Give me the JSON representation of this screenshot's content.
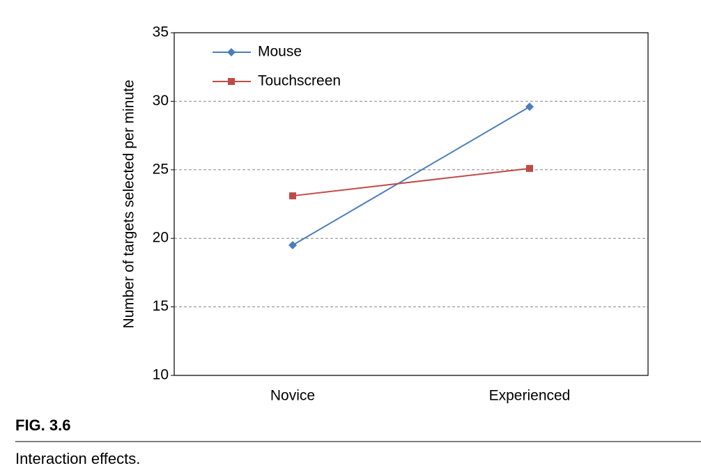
{
  "chart_data": {
    "type": "line",
    "y_label": "Number of targets selected per minute",
    "categories": [
      "Novice",
      "Experienced"
    ],
    "series": [
      {
        "name": "Mouse",
        "color": "#4a7ebb",
        "marker": "diamond",
        "values": [
          19.5,
          29.6
        ]
      },
      {
        "name": "Touchscreen",
        "color": "#be4b48",
        "marker": "square",
        "values": [
          23.1,
          25.1
        ]
      }
    ],
    "ylim": [
      10,
      35
    ],
    "yticks": [
      10,
      15,
      20,
      25,
      30,
      35
    ],
    "grid": true,
    "legend": "upper left"
  },
  "figure": {
    "label": "FIG. 3.6",
    "caption": "Interaction effects."
  }
}
